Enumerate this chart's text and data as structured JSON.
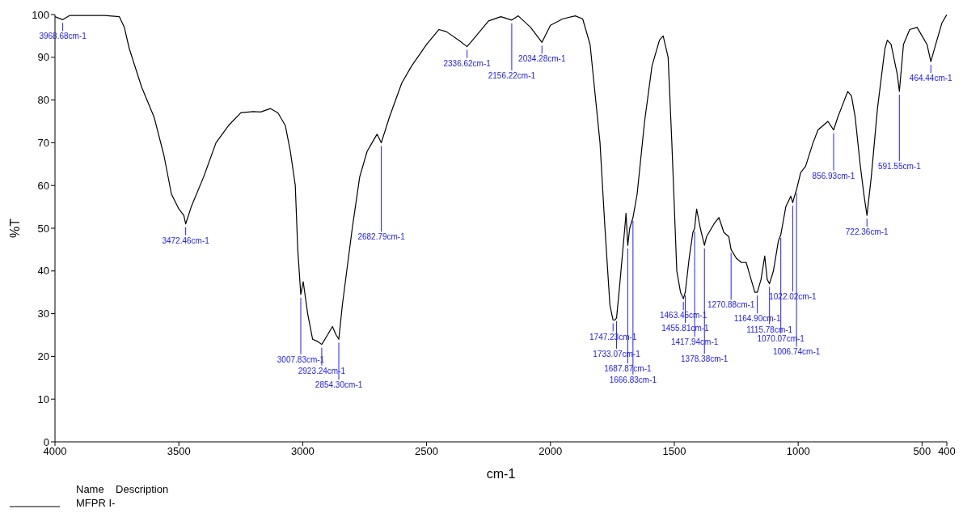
{
  "chart_data": {
    "type": "line",
    "xlabel": "cm-1",
    "ylabel": "%T",
    "legend_title": "Name    Description",
    "legend": "bottom left",
    "grid": false,
    "marker": "none",
    "line_style": "solid",
    "xlim": [
      4000,
      400
    ],
    "xticks": [
      4000,
      3500,
      3000,
      2500,
      2000,
      1500,
      1000,
      500,
      400
    ],
    "ylim": [
      0,
      100
    ],
    "yticks": [
      0,
      10,
      20,
      30,
      40,
      50,
      60,
      70,
      80,
      90,
      100
    ],
    "x": [
      4000,
      3968.68,
      3940,
      3800,
      3740,
      3720,
      3700,
      3650,
      3600,
      3560,
      3530,
      3500,
      3480,
      3472.46,
      3450,
      3400,
      3350,
      3300,
      3250,
      3200,
      3170,
      3130,
      3100,
      3070,
      3050,
      3030,
      3020,
      3007.83,
      2998,
      2980,
      2960,
      2940,
      2923.24,
      2900,
      2880,
      2865,
      2854.3,
      2840,
      2800,
      2770,
      2740,
      2720,
      2700,
      2682.79,
      2650,
      2600,
      2560,
      2500,
      2450,
      2420,
      2370,
      2336.62,
      2300,
      2250,
      2200,
      2156.22,
      2130,
      2080,
      2034.28,
      2000,
      1950,
      1900,
      1870,
      1840,
      1800,
      1780,
      1760,
      1747.23,
      1740,
      1733.07,
      1720,
      1700,
      1695,
      1687.87,
      1680,
      1666.83,
      1650,
      1620,
      1590,
      1560,
      1545,
      1525,
      1510,
      1490,
      1475,
      1463.45,
      1455.81,
      1440,
      1425,
      1417.94,
      1410,
      1395,
      1378.38,
      1370,
      1340,
      1320,
      1300,
      1280,
      1270.88,
      1250,
      1230,
      1210,
      1195,
      1175,
      1164.9,
      1150,
      1135,
      1125,
      1115.78,
      1100,
      1080,
      1070.07,
      1050,
      1030,
      1022.02,
      1015,
      1006.74,
      990,
      970,
      940,
      920,
      900,
      880,
      856.93,
      840,
      820,
      800,
      785,
      770,
      750,
      735,
      722.36,
      705,
      680,
      650,
      640,
      625,
      600,
      591.55,
      575,
      550,
      520,
      500,
      480,
      464.44,
      445,
      420,
      400
    ],
    "series": [
      {
        "name": "MFPR I-",
        "color": "#000000",
        "values": [
          99.5,
          98.8,
          99.8,
          99.8,
          99.5,
          97,
          92,
          83,
          76,
          67,
          58,
          54.5,
          53,
          51,
          55,
          62,
          70,
          74,
          77,
          77.3,
          77.2,
          78,
          77,
          74,
          68,
          60,
          45,
          34.5,
          37.5,
          30,
          24,
          23.5,
          22.8,
          25,
          27,
          25,
          24,
          32,
          50,
          62,
          68,
          70,
          72,
          70,
          76,
          84,
          88,
          93,
          96.5,
          96,
          94,
          92.5,
          95,
          98.5,
          99.5,
          98.7,
          99.7,
          97,
          93.5,
          97.5,
          99,
          99.7,
          99,
          93,
          70,
          50,
          32,
          28.5,
          28.5,
          29,
          37,
          50,
          53.5,
          46,
          50,
          52.5,
          58,
          75,
          88,
          94,
          95,
          90,
          70,
          40,
          35,
          33.5,
          35,
          43,
          49,
          50,
          54.5,
          50,
          46,
          48,
          51,
          52.5,
          49,
          48,
          45,
          43,
          42,
          42,
          39,
          35,
          35,
          38,
          43.5,
          38,
          37,
          40,
          47,
          48.5,
          55,
          57.5,
          56,
          57.5,
          59,
          63,
          64.5,
          70,
          73,
          74,
          75,
          73,
          76,
          79,
          82,
          81,
          76,
          65,
          58,
          53,
          62,
          78,
          92,
          94,
          93,
          86,
          82,
          93,
          96.5,
          97,
          95,
          93,
          89,
          93,
          98,
          100
        ]
      }
    ],
    "annotations": [
      {
        "text": "3968.68cm-1",
        "x": 3968.68,
        "y": 98.8
      },
      {
        "text": "3472.46cm-1",
        "x": 3472.46,
        "y": 51
      },
      {
        "text": "3007.83cm-1",
        "x": 3007.83,
        "y": 34.5
      },
      {
        "text": "2923.24cm-1",
        "x": 2923.24,
        "y": 22.8
      },
      {
        "text": "2854.30cm-1",
        "x": 2854.3,
        "y": 24
      },
      {
        "text": "2682.79cm-1",
        "x": 2682.79,
        "y": 70
      },
      {
        "text": "2336.62cm-1",
        "x": 2336.62,
        "y": 92.5
      },
      {
        "text": "2156.22cm-1",
        "x": 2156.22,
        "y": 98.7
      },
      {
        "text": "2034.28cm-1",
        "x": 2034.28,
        "y": 93.5
      },
      {
        "text": "1747.23cm-1",
        "x": 1747.23,
        "y": 28.5
      },
      {
        "text": "1733.07cm-1",
        "x": 1733.07,
        "y": 29
      },
      {
        "text": "1687.87cm-1",
        "x": 1687.87,
        "y": 46
      },
      {
        "text": "1666.83cm-1",
        "x": 1666.83,
        "y": 52.5
      },
      {
        "text": "1463.45cm-1",
        "x": 1463.45,
        "y": 33.5
      },
      {
        "text": "1455.81cm-1",
        "x": 1455.81,
        "y": 35
      },
      {
        "text": "1417.94cm-1",
        "x": 1417.94,
        "y": 50
      },
      {
        "text": "1378.38cm-1",
        "x": 1378.38,
        "y": 46
      },
      {
        "text": "1270.88cm-1",
        "x": 1270.88,
        "y": 45
      },
      {
        "text": "1164.90cm-1",
        "x": 1164.9,
        "y": 35
      },
      {
        "text": "1115.78cm-1",
        "x": 1115.78,
        "y": 37
      },
      {
        "text": "1070.07cm-1",
        "x": 1070.07,
        "y": 48.5
      },
      {
        "text": "1022.02cm-1",
        "x": 1022.02,
        "y": 56
      },
      {
        "text": "1006.74cm-1",
        "x": 1006.74,
        "y": 59
      },
      {
        "text": "856.93cm-1",
        "x": 856.93,
        "y": 73
      },
      {
        "text": "722.36cm-1",
        "x": 722.36,
        "y": 53
      },
      {
        "text": "591.55cm-1",
        "x": 591.55,
        "y": 82
      },
      {
        "text": "464.44cm-1",
        "x": 464.44,
        "y": 89
      }
    ]
  }
}
